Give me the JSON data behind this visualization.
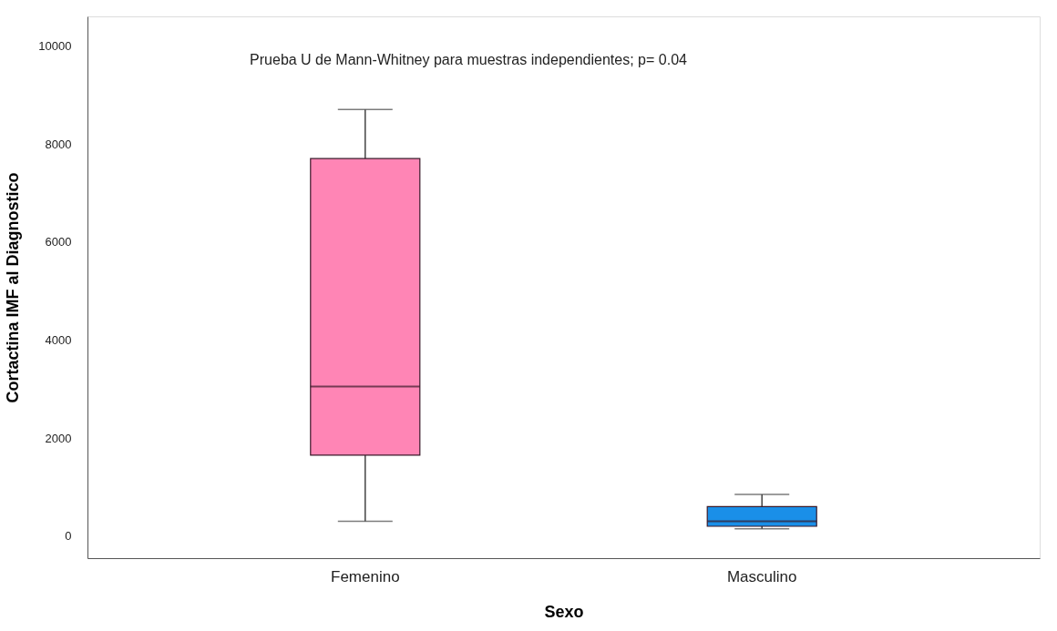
{
  "chart_data": {
    "type": "box",
    "xlabel": "Sexo",
    "ylabel": "Cortactina IMF al Diagnostico",
    "annotations": [
      "Prueba U de Mann-Whitney para muestras independientes; p= 0.04"
    ],
    "categories": [
      "Femenino",
      "Masculino"
    ],
    "boxes": [
      {
        "low": 300,
        "q1": 1650,
        "median": 3050,
        "q3": 7700,
        "high": 8700
      },
      {
        "low": 150,
        "q1": 200,
        "median": 300,
        "q3": 600,
        "high": 850
      }
    ],
    "colors": [
      "#ff85b5",
      "#1a8fe8"
    ],
    "ylim": [
      -450,
      10600
    ],
    "yticks": [
      0,
      2000,
      4000,
      6000,
      8000,
      10000
    ],
    "grid": false
  }
}
